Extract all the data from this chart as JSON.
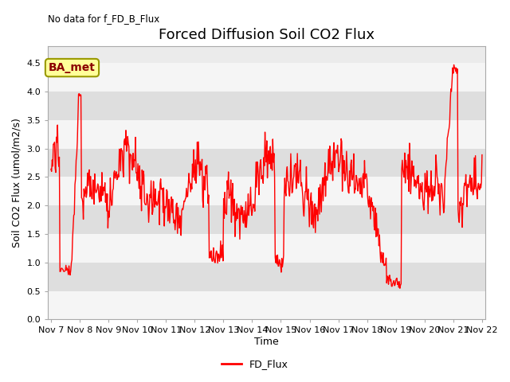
{
  "title": "Forced Diffusion Soil CO2 Flux",
  "xlabel": "Time",
  "ylabel": "Soil CO2 Flux (umol/m2/s)",
  "annotation_text": "No data for f_FD_B_Flux",
  "legend_label": "FD_Flux",
  "ba_met_label": "BA_met",
  "ylim": [
    0.0,
    4.8
  ],
  "yticks": [
    0.0,
    0.5,
    1.0,
    1.5,
    2.0,
    2.5,
    3.0,
    3.5,
    4.0,
    4.5
  ],
  "line_color": "#FF0000",
  "line_width": 1.0,
  "background_color": "#ffffff",
  "plot_bg_color": "#ebebeb",
  "band_color_light": "#f5f5f5",
  "band_color_dark": "#dedede",
  "title_fontsize": 13,
  "axis_label_fontsize": 9,
  "tick_fontsize": 8,
  "n_points": 720,
  "xtick_labels": [
    "Nov 7",
    "Nov 8",
    "Nov 9",
    "Nov 10",
    "Nov 11",
    "Nov 12",
    "Nov 13",
    "Nov 14",
    "Nov 15",
    "Nov 16",
    "Nov 17",
    "Nov 18",
    "Nov 19",
    "Nov 20",
    "Nov 21",
    "Nov 22"
  ],
  "ba_met_box_color": "#ffff99",
  "ba_met_box_edgecolor": "#999900",
  "ba_met_text_color": "#8B0000"
}
